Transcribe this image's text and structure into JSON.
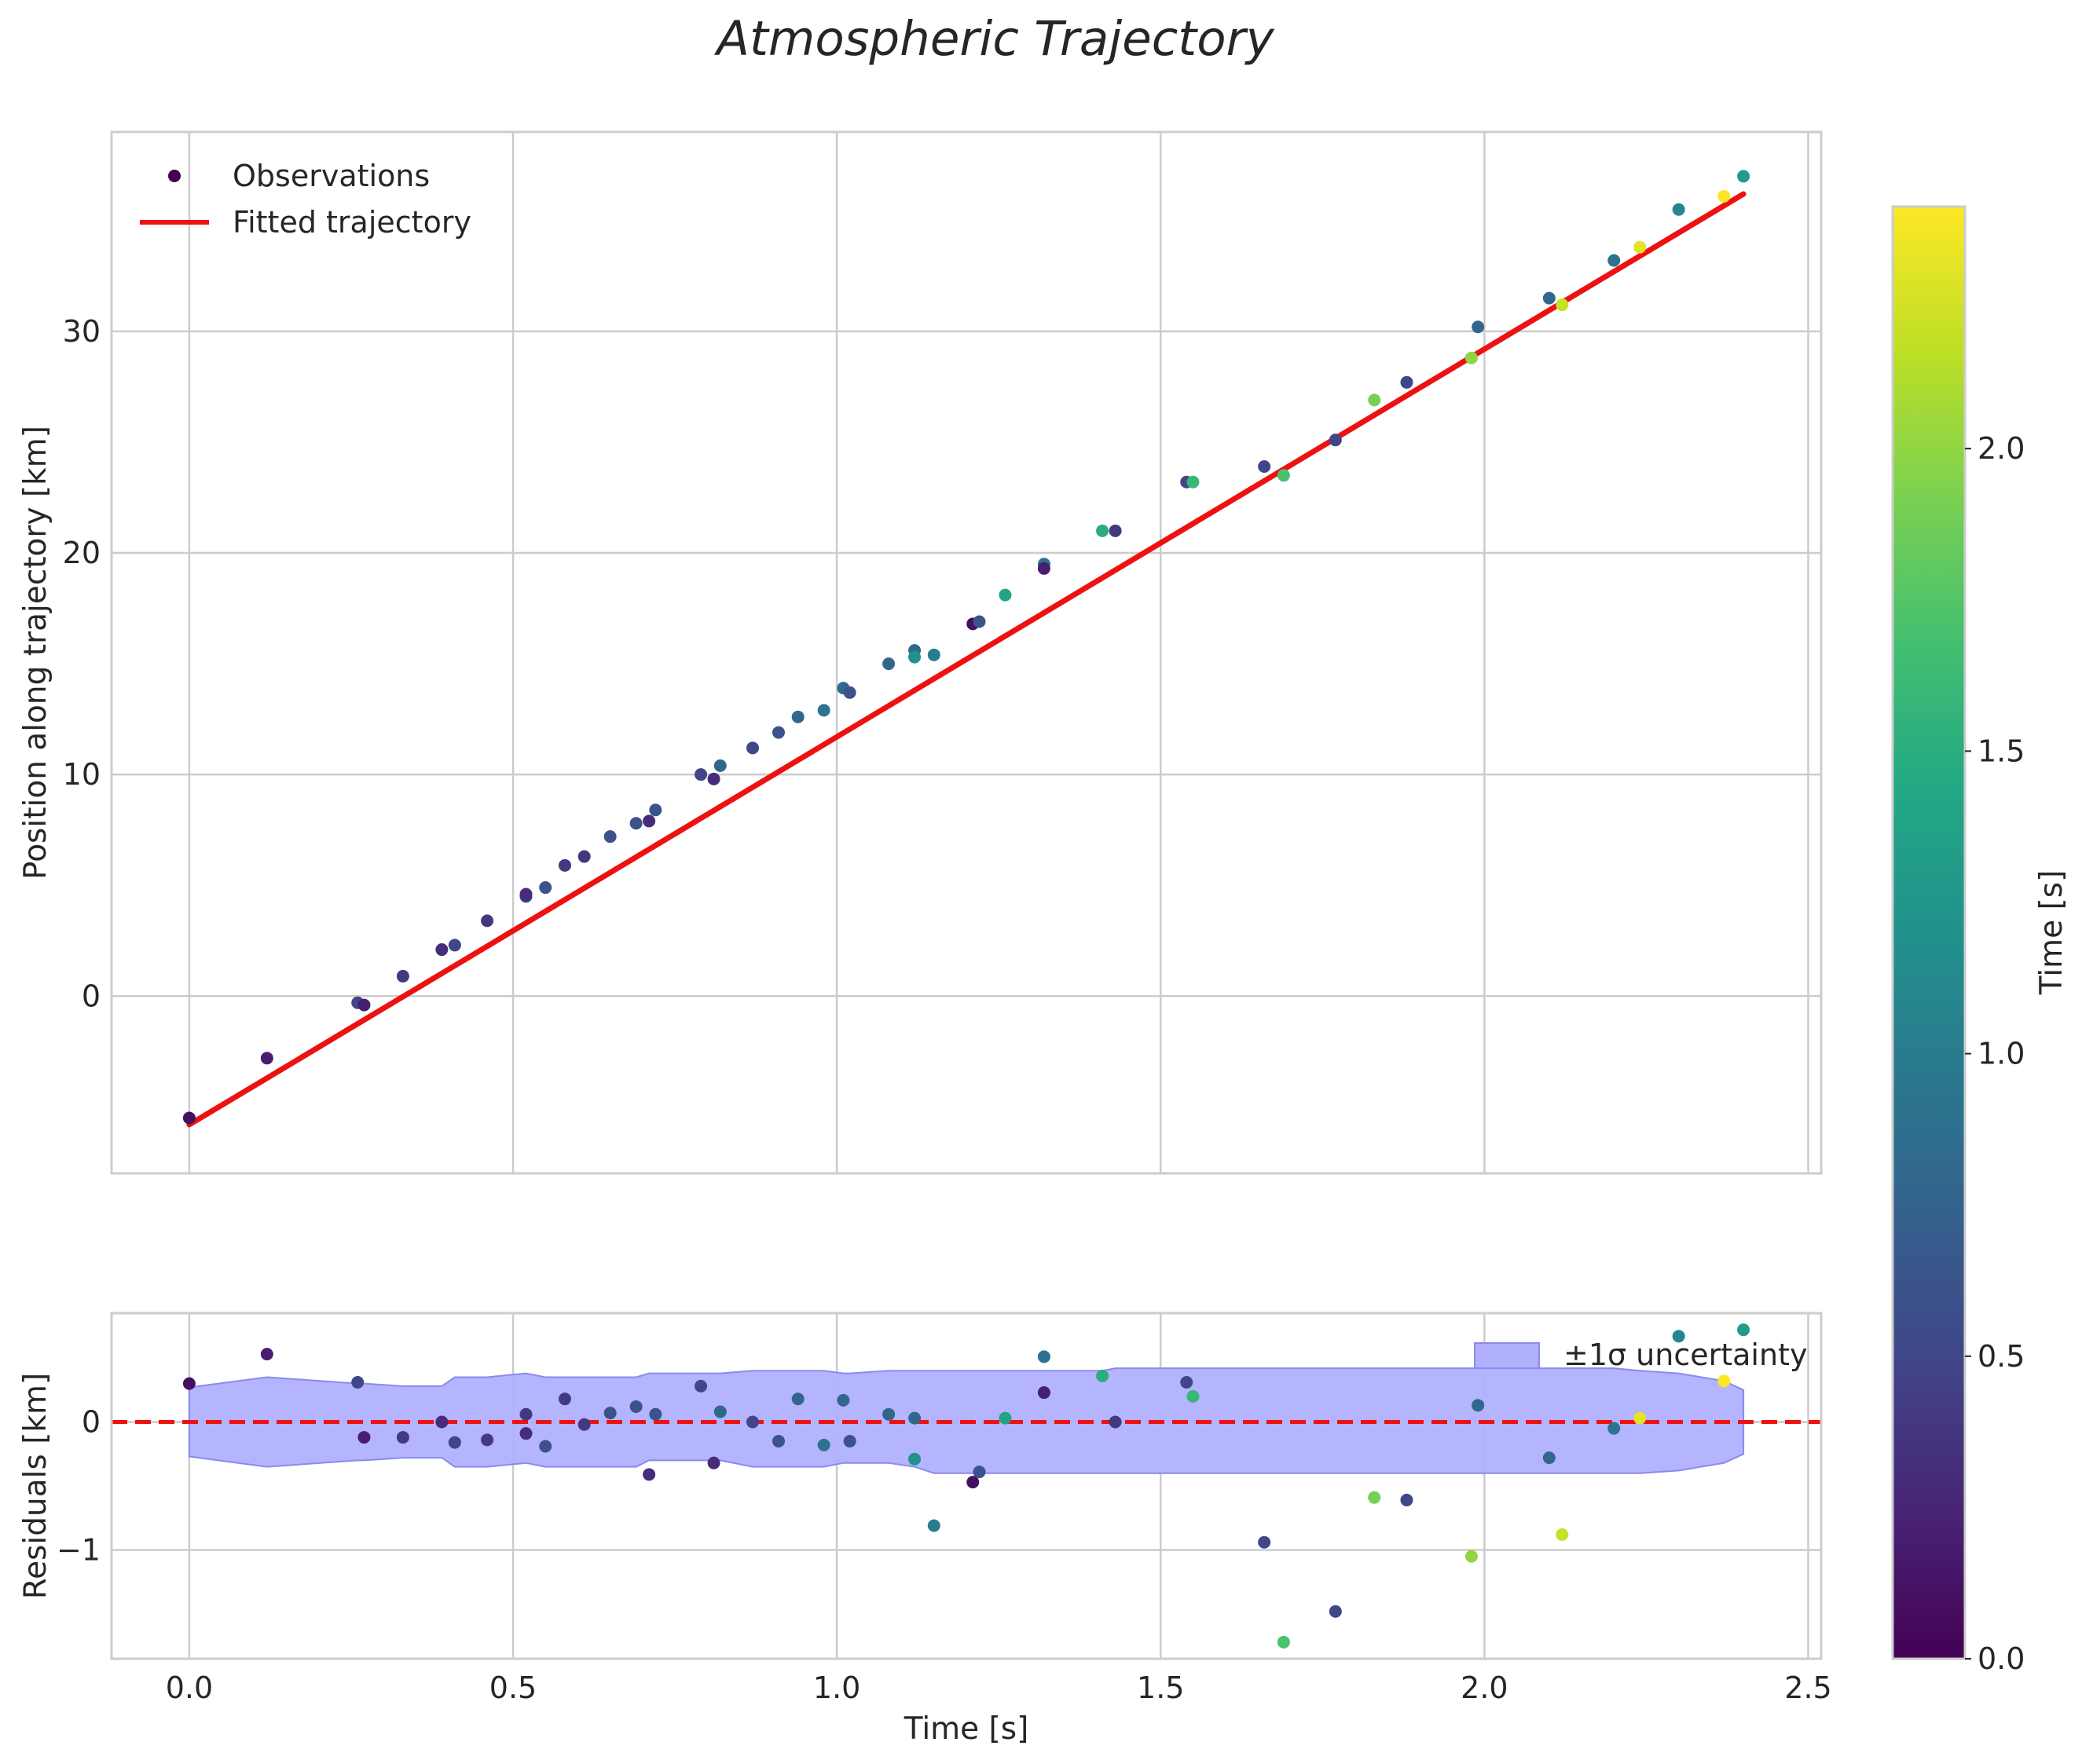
{
  "chart_data": {
    "type": "scatter",
    "title": "Atmospheric Trajectory",
    "colors": {
      "fit_line": "#ee1111",
      "zero_line": "#ee1111",
      "band_fill": "#b0b0ff",
      "band_edge": "#8a8aee",
      "grid": "#cccccc",
      "frame": "#cccccc"
    },
    "colormap": "viridis",
    "x": [
      0.0,
      0.12,
      0.26,
      0.27,
      0.33,
      0.39,
      0.41,
      0.46,
      0.52,
      0.52,
      0.55,
      0.58,
      0.61,
      0.65,
      0.69,
      0.71,
      0.72,
      0.79,
      0.81,
      0.82,
      0.87,
      0.91,
      0.94,
      0.98,
      1.01,
      1.02,
      1.08,
      1.12,
      1.12,
      1.15,
      1.21,
      1.22,
      1.26,
      1.32,
      1.32,
      1.41,
      1.43,
      1.54,
      1.55,
      1.66,
      1.69,
      1.77,
      1.83,
      1.88,
      1.98,
      1.99,
      2.1,
      2.12,
      2.2,
      2.24,
      2.3,
      2.37,
      2.4
    ],
    "color_values": [
      0.1,
      0.2,
      0.5,
      0.2,
      0.4,
      0.3,
      0.5,
      0.4,
      0.4,
      0.3,
      0.6,
      0.4,
      0.4,
      0.6,
      0.6,
      0.3,
      0.6,
      0.5,
      0.3,
      0.8,
      0.5,
      0.6,
      0.8,
      0.9,
      0.8,
      0.6,
      0.8,
      0.8,
      1.2,
      1.0,
      0.1,
      0.6,
      1.4,
      0.9,
      0.2,
      1.5,
      0.4,
      0.5,
      1.6,
      0.5,
      1.7,
      0.5,
      1.9,
      0.5,
      2.0,
      0.8,
      0.8,
      2.2,
      0.9,
      2.3,
      1.1,
      2.4,
      1.3
    ],
    "plots": [
      {
        "ylabel": "Position along trajectory [km]",
        "xlim": [
          -0.12,
          2.52
        ],
        "ylim": [
          -8,
          39
        ],
        "yticks": [
          "0",
          "10",
          "20",
          "30"
        ],
        "grid": true,
        "legend": {
          "position": "top-left",
          "entries": [
            "Observations",
            "Fitted trajectory"
          ]
        },
        "observations": [
          -5.5,
          -2.8,
          -0.3,
          -0.4,
          0.9,
          2.1,
          2.3,
          3.4,
          4.5,
          4.6,
          4.9,
          5.9,
          6.3,
          7.2,
          7.8,
          7.9,
          8.4,
          10.0,
          9.8,
          10.4,
          11.2,
          11.9,
          12.6,
          12.9,
          13.9,
          13.7,
          15.0,
          15.6,
          15.3,
          15.4,
          16.8,
          16.9,
          18.1,
          19.5,
          19.3,
          21.0,
          21.0,
          23.2,
          23.2,
          23.9,
          23.5,
          25.1,
          26.9,
          27.7,
          28.8,
          30.2,
          31.5,
          31.2,
          33.2,
          33.8,
          35.5,
          36.1,
          37.0
        ],
        "fit": {
          "x": [
            0.0,
            2.4
          ],
          "y": [
            -5.8,
            36.2
          ]
        }
      },
      {
        "ylabel": "Residuals [km]",
        "xlabel": "Time [s]",
        "xlim": [
          -0.12,
          2.52
        ],
        "ylim": [
          -1.85,
          0.85
        ],
        "xticks": [
          "0.0",
          "0.5",
          "1.0",
          "1.5",
          "2.0",
          "2.5"
        ],
        "yticks": [
          "−1",
          "0"
        ],
        "grid": true,
        "legend": {
          "position": "top-right",
          "entries": [
            "±1σ uncertainty"
          ]
        },
        "residuals": [
          0.3,
          0.53,
          0.31,
          -0.12,
          -0.12,
          0.0,
          -0.16,
          -0.14,
          0.06,
          -0.09,
          -0.19,
          0.18,
          -0.02,
          0.07,
          0.12,
          -0.41,
          0.06,
          0.28,
          -0.32,
          0.08,
          0.0,
          -0.15,
          0.18,
          -0.18,
          0.17,
          -0.15,
          0.06,
          0.03,
          -0.29,
          -0.81,
          -0.47,
          -0.39,
          0.03,
          0.51,
          0.23,
          0.36,
          0.0,
          0.31,
          0.2,
          -0.94,
          -1.72,
          -1.48,
          -0.59,
          -0.61,
          -1.05,
          0.13,
          -0.28,
          -0.88,
          -0.05,
          0.03,
          0.67,
          0.32,
          0.72
        ],
        "band_upper": [
          0.27,
          0.35,
          0.3,
          0.3,
          0.28,
          0.28,
          0.35,
          0.35,
          0.38,
          0.38,
          0.35,
          0.35,
          0.35,
          0.35,
          0.35,
          0.38,
          0.38,
          0.38,
          0.38,
          0.38,
          0.4,
          0.4,
          0.4,
          0.4,
          0.38,
          0.38,
          0.4,
          0.4,
          0.4,
          0.4,
          0.4,
          0.4,
          0.4,
          0.4,
          0.4,
          0.4,
          0.42,
          0.42,
          0.42,
          0.42,
          0.42,
          0.42,
          0.42,
          0.42,
          0.42,
          0.42,
          0.42,
          0.42,
          0.42,
          0.4,
          0.38,
          0.32,
          0.25
        ],
        "band_lower": [
          -0.27,
          -0.35,
          -0.3,
          -0.3,
          -0.28,
          -0.28,
          -0.35,
          -0.35,
          -0.32,
          -0.32,
          -0.35,
          -0.35,
          -0.35,
          -0.35,
          -0.35,
          -0.3,
          -0.3,
          -0.3,
          -0.3,
          -0.3,
          -0.35,
          -0.35,
          -0.35,
          -0.35,
          -0.32,
          -0.32,
          -0.32,
          -0.35,
          -0.35,
          -0.4,
          -0.4,
          -0.4,
          -0.4,
          -0.4,
          -0.4,
          -0.4,
          -0.4,
          -0.4,
          -0.4,
          -0.4,
          -0.4,
          -0.4,
          -0.4,
          -0.4,
          -0.4,
          -0.4,
          -0.4,
          -0.4,
          -0.4,
          -0.4,
          -0.38,
          -0.32,
          -0.25
        ]
      }
    ],
    "colorbar": {
      "label": "Time [s]",
      "range": [
        0,
        2.4
      ],
      "ticks": [
        "0.0",
        "0.5",
        "1.0",
        "1.5",
        "2.0"
      ]
    }
  }
}
